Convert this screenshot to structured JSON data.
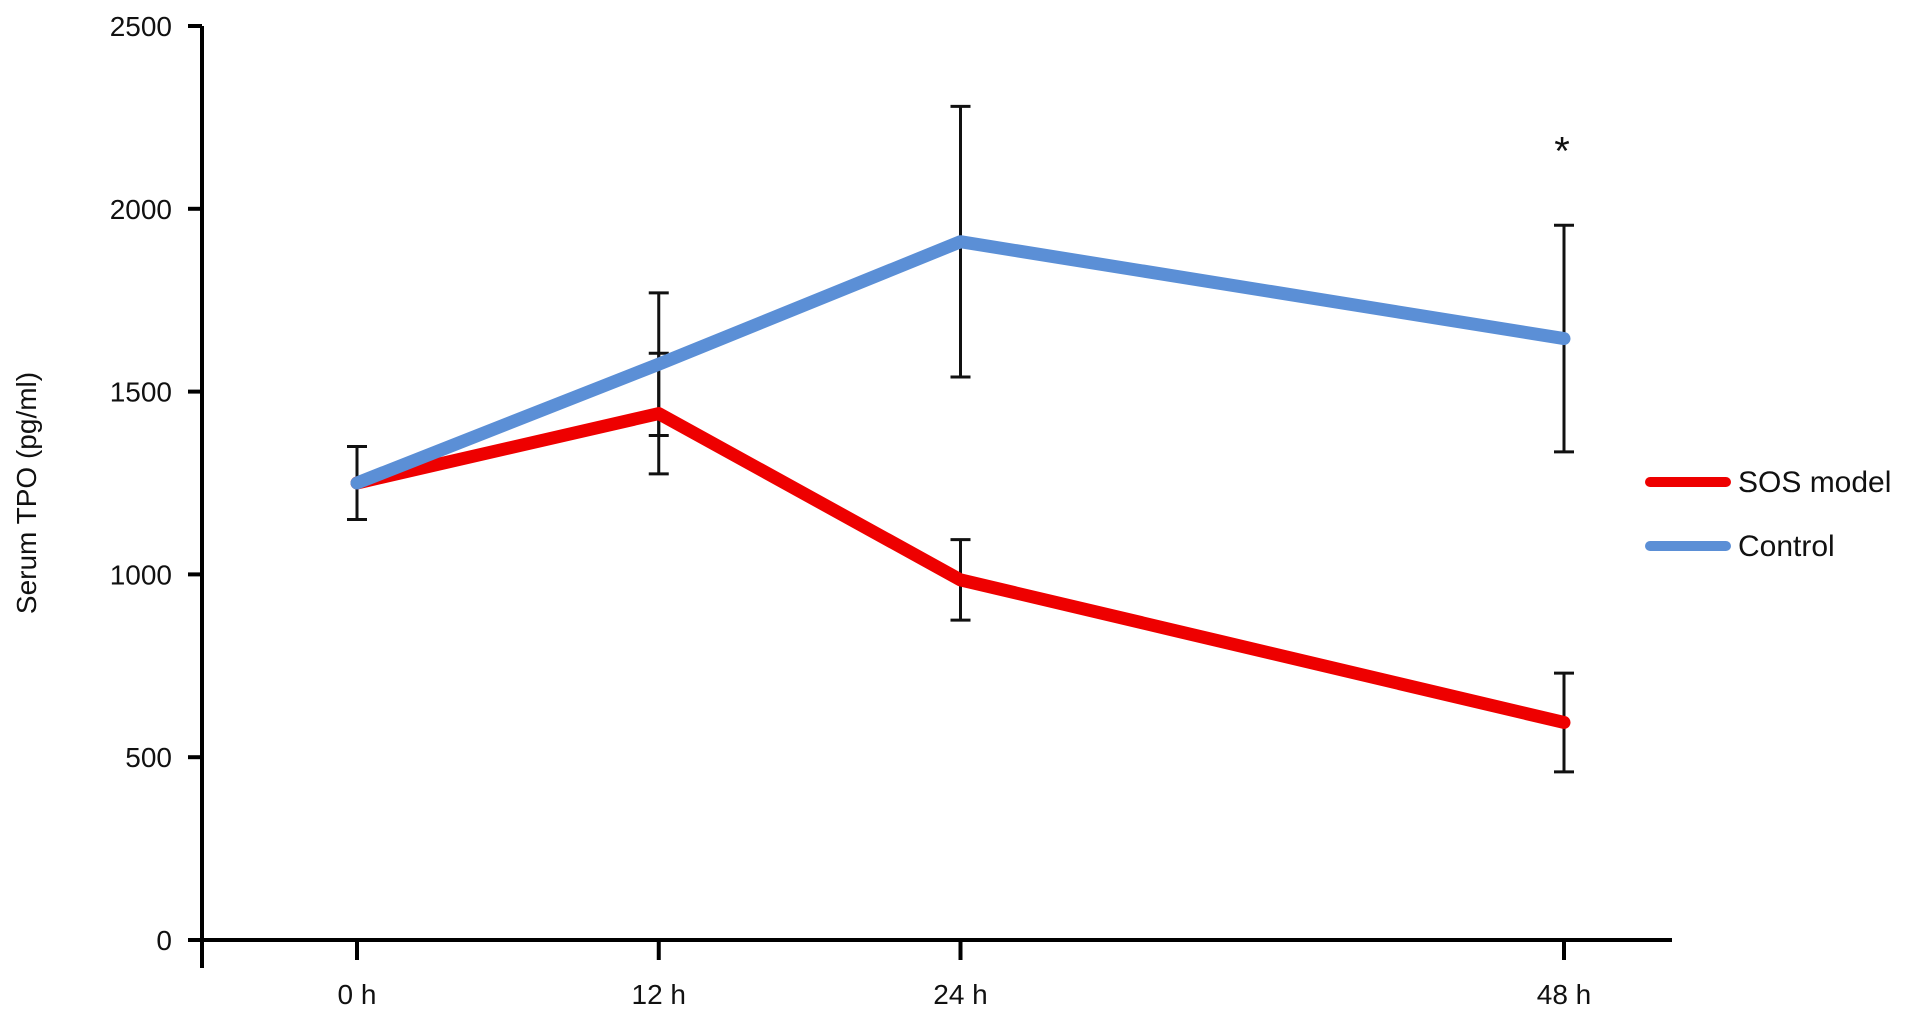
{
  "chart_data": {
    "type": "line",
    "title": "",
    "xlabel": "",
    "ylabel": "Serum TPO (pg/ml)",
    "categories": [
      "0 h",
      "12 h",
      "24 h",
      "48 h"
    ],
    "x_hours": [
      0,
      12,
      24,
      48
    ],
    "ylim": [
      0,
      2500
    ],
    "yticks": [
      0,
      500,
      1000,
      1500,
      2000,
      2500
    ],
    "grid": false,
    "legend_position": "right",
    "series": [
      {
        "name": "SOS model",
        "color": "#ee0000",
        "values": [
          1250,
          1440,
          985,
          595
        ],
        "error": [
          100,
          165,
          110,
          135
        ]
      },
      {
        "name": "Control",
        "color": "#5b8fd6",
        "values": [
          1250,
          1575,
          1910,
          1645
        ],
        "error": [
          100,
          195,
          370,
          310
        ]
      }
    ],
    "annotations": [
      {
        "text": "*",
        "x": "48 h",
        "y": 2170
      }
    ]
  }
}
